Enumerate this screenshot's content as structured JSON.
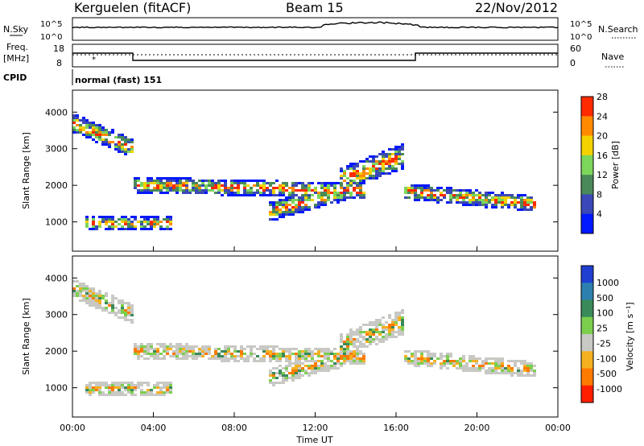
{
  "header": {
    "station": "Kerguelen (fitACF)",
    "beam": "Beam 15",
    "date": "22/Nov/2012"
  },
  "noise_panel": {
    "left_label": "N.Sky",
    "right_label": "N.Search",
    "tick_top": "10^5",
    "tick_bottom": "10^0",
    "right_tick_top": "10^5",
    "right_tick_bottom": "10^0"
  },
  "freq_panel": {
    "label_line1": "Freq.",
    "label_line2": "[MHz]",
    "left_ticks": [
      "18",
      "8"
    ],
    "right_ticks": [
      "60",
      "0"
    ],
    "right_label": "Nave"
  },
  "cpid": {
    "label": "CPID",
    "value": "normal (fast) 151"
  },
  "chart_data": [
    {
      "type": "heatmap",
      "name": "power",
      "ylabel": "Slant Range [km]",
      "xlabel": "",
      "ylim": [
        200,
        4600
      ],
      "yticks": [
        "1000",
        "2000",
        "3000",
        "4000"
      ],
      "colorbar_label": "Power [dB]",
      "colorbar_ticks": [
        "4",
        "8",
        "12",
        "16",
        "20",
        "24",
        "28"
      ],
      "colorbar_colors": [
        "#0018ff",
        "#3a48b8",
        "#4a8a5a",
        "#7cd65c",
        "#f3d200",
        "#ff8a00",
        "#ff2a00"
      ]
    },
    {
      "type": "heatmap",
      "name": "velocity",
      "ylabel": "Slant Range [km]",
      "xlabel": "Time UT",
      "ylim": [
        200,
        4600
      ],
      "yticks": [
        "1000",
        "2000",
        "3000",
        "4000"
      ],
      "xticks": [
        "00:00",
        "04:00",
        "08:00",
        "12:00",
        "16:00",
        "20:00",
        "00:00"
      ],
      "colorbar_label": "Velocity [m s⁻¹]",
      "colorbar_ticks": [
        "1000",
        "500",
        "100",
        "25",
        "-25",
        "-100",
        "-500",
        "-1000"
      ],
      "colorbar_colors": [
        "#1f3fd0",
        "#2d7fae",
        "#3a8a5a",
        "#7ccf4e",
        "#c8c8c4",
        "#f5b020",
        "#ff7a00",
        "#ff1e00"
      ]
    }
  ]
}
